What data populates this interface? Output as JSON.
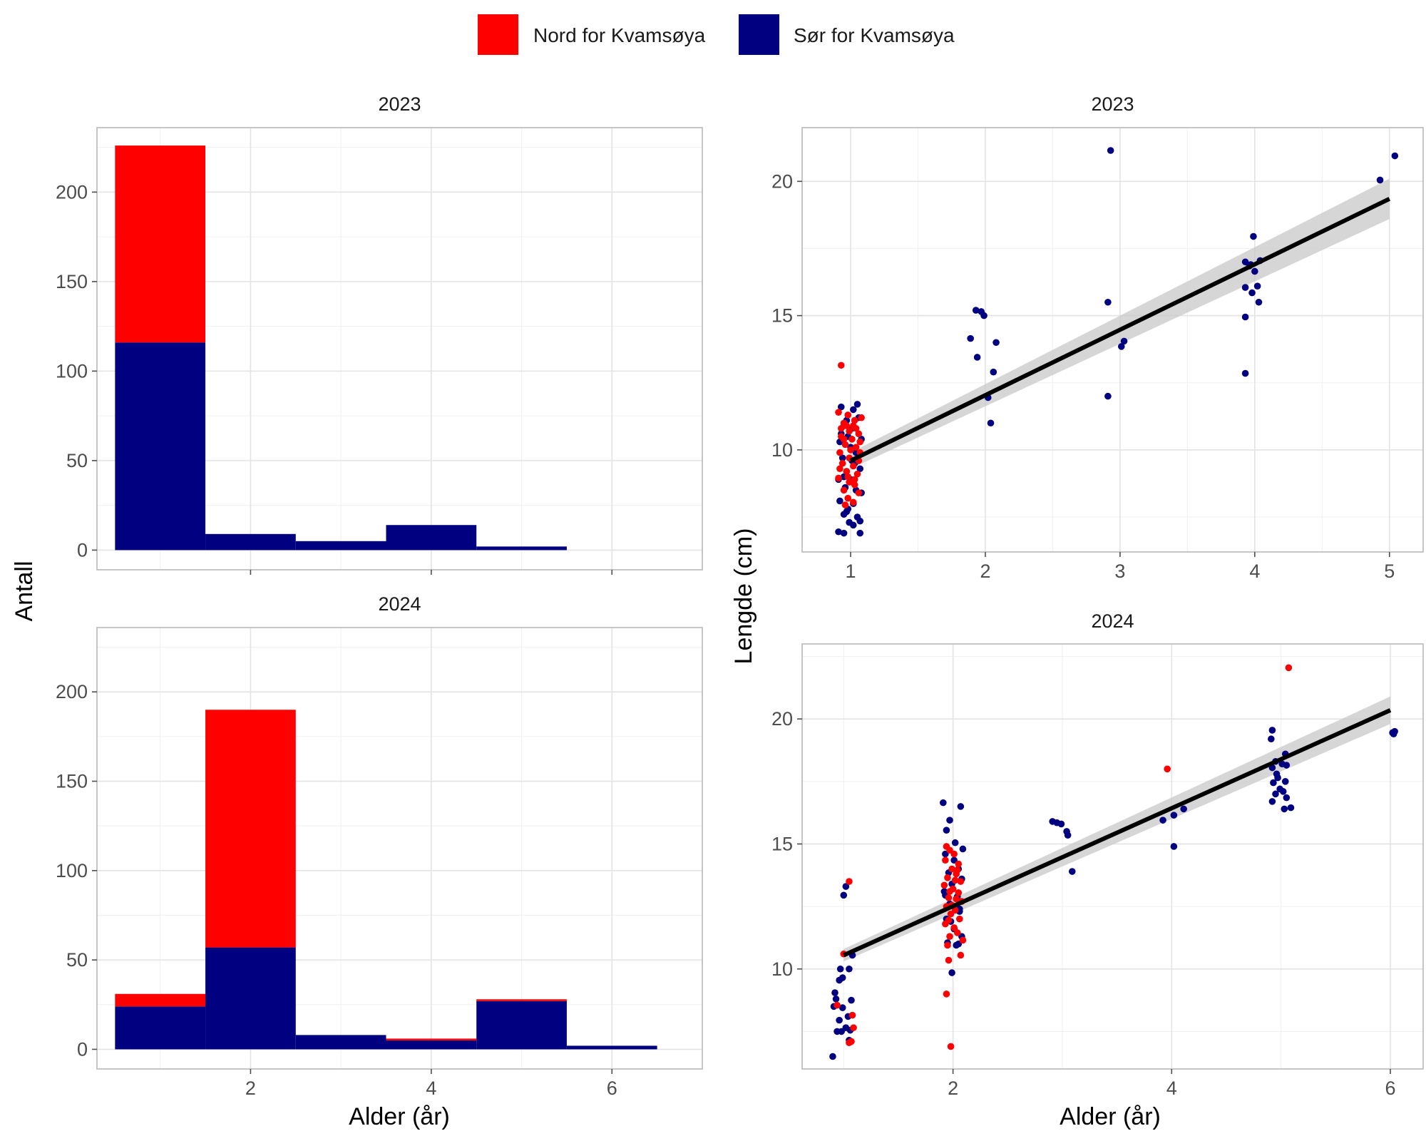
{
  "colors": {
    "nord": "#ff0000",
    "sor": "#000080",
    "fit_line": "#000000",
    "ribbon": "#c8c8c8"
  },
  "legend": {
    "items": [
      {
        "label": "Nord for Kvamsøya",
        "color": "#ff0000"
      },
      {
        "label": "Sør for Kvamsøya",
        "color": "#000080"
      }
    ]
  },
  "axes": {
    "hist_ylabel": "Antall",
    "hist_xlabel": "Alder (år)",
    "scatter_ylabel": "Lengde (cm)",
    "scatter_xlabel": "Alder (år)"
  },
  "chart_data": [
    {
      "type": "bar",
      "panel": "histogram",
      "title": "2023",
      "stacked": true,
      "categories": [
        1,
        2,
        3,
        4,
        5
      ],
      "series": [
        {
          "name": "Sør for Kvamsøya",
          "values": [
            116,
            9,
            5,
            14,
            2
          ]
        },
        {
          "name": "Nord for Kvamsøya",
          "values": [
            110,
            0,
            0,
            0,
            0
          ]
        }
      ],
      "xlim": [
        0.3,
        7.0
      ],
      "ylim": [
        -11,
        236
      ],
      "xticks": [],
      "yticks": [
        0,
        50,
        100,
        150,
        200
      ],
      "grid": true
    },
    {
      "type": "bar",
      "panel": "histogram",
      "title": "2024",
      "stacked": true,
      "categories": [
        1,
        2,
        3,
        4,
        5,
        6
      ],
      "series": [
        {
          "name": "Sør for Kvamsøya",
          "values": [
            24,
            57,
            8,
            5,
            27,
            2
          ]
        },
        {
          "name": "Nord for Kvamsøya",
          "values": [
            7,
            133,
            0,
            1,
            1,
            0
          ]
        }
      ],
      "xlim": [
        0.3,
        7.0
      ],
      "ylim": [
        -11,
        236
      ],
      "xticks": [
        2,
        4,
        6
      ],
      "yticks": [
        0,
        50,
        100,
        150,
        200
      ],
      "grid": true
    },
    {
      "type": "scatter",
      "panel": "scatter",
      "title": "2023",
      "xlim": [
        0.64,
        5.25
      ],
      "ylim": [
        6.2,
        22.0
      ],
      "xticks": [
        1,
        2,
        3,
        4,
        5
      ],
      "yticks": [
        10,
        15,
        20
      ],
      "grid": true,
      "series": [
        {
          "name": "Sør for Kvamsøya",
          "points": [
            [
              1.93,
              15.2
            ],
            [
              1.97,
              15.15
            ],
            [
              1.99,
              15.0
            ],
            [
              1.89,
              14.15
            ],
            [
              2.08,
              14.0
            ],
            [
              1.94,
              13.45
            ],
            [
              2.06,
              12.9
            ],
            [
              2.02,
              11.95
            ],
            [
              2.04,
              11.0
            ],
            [
              2.93,
              21.15
            ],
            [
              2.91,
              15.5
            ],
            [
              3.03,
              14.05
            ],
            [
              3.01,
              13.85
            ],
            [
              2.91,
              12.0
            ],
            [
              3.99,
              17.95
            ],
            [
              3.93,
              17.0
            ],
            [
              3.96,
              16.85
            ],
            [
              4.04,
              17.05
            ],
            [
              4.0,
              16.65
            ],
            [
              3.97,
              16.9
            ],
            [
              3.93,
              16.05
            ],
            [
              3.98,
              15.85
            ],
            [
              4.02,
              16.1
            ],
            [
              4.03,
              15.5
            ],
            [
              3.93,
              14.95
            ],
            [
              3.93,
              12.85
            ],
            [
              4.93,
              20.05
            ],
            [
              5.04,
              20.95
            ],
            [
              0.93,
              11.6
            ],
            [
              1.02,
              11.5
            ],
            [
              1.05,
              11.7
            ],
            [
              0.97,
              11.1
            ],
            [
              1.06,
              11.2
            ],
            [
              0.95,
              10.9
            ],
            [
              1.01,
              10.8
            ],
            [
              0.92,
              10.3
            ],
            [
              1.08,
              10.4
            ],
            [
              1.0,
              10.1
            ],
            [
              0.94,
              9.7
            ],
            [
              1.03,
              9.5
            ],
            [
              0.97,
              9.2
            ],
            [
              1.07,
              9.3
            ],
            [
              0.91,
              8.9
            ],
            [
              1.0,
              8.9
            ],
            [
              0.96,
              8.6
            ],
            [
              1.04,
              8.5
            ],
            [
              0.92,
              8.1
            ],
            [
              1.02,
              8.0
            ],
            [
              0.98,
              7.8
            ],
            [
              0.95,
              7.6
            ],
            [
              1.05,
              7.5
            ],
            [
              0.99,
              7.3
            ],
            [
              1.02,
              7.2
            ],
            [
              1.07,
              7.35
            ],
            [
              0.91,
              6.95
            ],
            [
              0.95,
              6.9
            ],
            [
              1.07,
              6.9
            ],
            [
              0.97,
              7.7
            ],
            [
              1.08,
              8.4
            ],
            [
              0.93,
              10.6
            ],
            [
              1.04,
              9.9
            ],
            [
              0.98,
              10.5
            ],
            [
              1.01,
              9.6
            ],
            [
              0.95,
              9.0
            ]
          ]
        },
        {
          "name": "Nord for Kvamsøya",
          "points": [
            [
              0.93,
              13.15
            ],
            [
              0.91,
              11.4
            ],
            [
              0.98,
              11.3
            ],
            [
              1.03,
              11.1
            ],
            [
              1.08,
              11.2
            ],
            [
              0.95,
              11.0
            ],
            [
              1.02,
              10.9
            ],
            [
              0.99,
              10.7
            ],
            [
              1.06,
              10.6
            ],
            [
              0.93,
              10.5
            ],
            [
              1.01,
              10.4
            ],
            [
              0.96,
              10.2
            ],
            [
              1.04,
              10.1
            ],
            [
              0.92,
              9.9
            ],
            [
              1.07,
              9.9
            ],
            [
              0.99,
              9.7
            ],
            [
              0.94,
              9.5
            ],
            [
              1.02,
              9.4
            ],
            [
              0.97,
              9.2
            ],
            [
              1.05,
              9.1
            ],
            [
              0.91,
              8.95
            ],
            [
              0.99,
              8.8
            ],
            [
              1.03,
              8.7
            ],
            [
              0.95,
              8.5
            ],
            [
              1.06,
              8.4
            ],
            [
              0.98,
              8.2
            ],
            [
              1.02,
              8.05
            ],
            [
              0.96,
              7.95
            ],
            [
              1.04,
              10.8
            ],
            [
              0.93,
              10.8
            ],
            [
              1.07,
              10.3
            ],
            [
              0.97,
              10.9
            ],
            [
              1.0,
              10.0
            ],
            [
              0.92,
              9.3
            ],
            [
              1.06,
              9.6
            ],
            [
              0.98,
              9.0
            ],
            [
              1.03,
              8.9
            ],
            [
              0.95,
              10.4
            ]
          ]
        }
      ],
      "fit": {
        "x": [
          1.0,
          5.0
        ],
        "y": [
          9.6,
          19.35
        ],
        "ribbon_low": [
          9.3,
          18.6
        ],
        "ribbon_high": [
          9.9,
          20.1
        ]
      }
    },
    {
      "type": "scatter",
      "panel": "scatter",
      "title": "2024",
      "xlim": [
        0.62,
        6.3
      ],
      "ylim": [
        6.0,
        23.0
      ],
      "xticks": [
        2,
        4,
        6
      ],
      "yticks": [
        10,
        15,
        20
      ],
      "grid": true,
      "series": [
        {
          "name": "Sør for Kvamsøya",
          "points": [
            [
              1.0,
              12.95
            ],
            [
              1.08,
              10.55
            ],
            [
              0.97,
              10.0
            ],
            [
              1.05,
              10.0
            ],
            [
              0.99,
              9.65
            ],
            [
              0.96,
              9.55
            ],
            [
              0.92,
              9.05
            ],
            [
              0.93,
              8.8
            ],
            [
              1.07,
              8.75
            ],
            [
              0.91,
              8.5
            ],
            [
              0.99,
              8.45
            ],
            [
              1.04,
              8.1
            ],
            [
              0.96,
              7.95
            ],
            [
              1.02,
              7.65
            ],
            [
              0.98,
              7.5
            ],
            [
              1.06,
              7.55
            ],
            [
              0.94,
              7.5
            ],
            [
              1.05,
              7.15
            ],
            [
              0.9,
              6.5
            ],
            [
              1.02,
              13.3
            ],
            [
              1.91,
              16.65
            ],
            [
              2.07,
              16.5
            ],
            [
              1.97,
              15.95
            ],
            [
              1.94,
              15.55
            ],
            [
              2.02,
              15.05
            ],
            [
              2.09,
              14.8
            ],
            [
              1.93,
              14.6
            ],
            [
              2.01,
              14.35
            ],
            [
              2.05,
              14.0
            ],
            [
              1.96,
              13.85
            ],
            [
              2.08,
              13.6
            ],
            [
              1.99,
              13.4
            ],
            [
              1.92,
              13.1
            ],
            [
              2.04,
              12.9
            ],
            [
              1.97,
              12.6
            ],
            [
              2.06,
              12.3
            ],
            [
              1.94,
              12.0
            ],
            [
              2.01,
              11.6
            ],
            [
              2.08,
              11.3
            ],
            [
              1.95,
              11.05
            ],
            [
              2.03,
              10.95
            ],
            [
              2.05,
              11.0
            ],
            [
              1.99,
              9.85
            ],
            [
              1.93,
              12.95
            ],
            [
              2.06,
              12.4
            ],
            [
              1.98,
              11.9
            ],
            [
              2.91,
              15.9
            ],
            [
              2.95,
              15.85
            ],
            [
              2.99,
              15.8
            ],
            [
              3.04,
              15.5
            ],
            [
              3.05,
              15.35
            ],
            [
              3.09,
              13.9
            ],
            [
              3.92,
              15.95
            ],
            [
              4.02,
              16.15
            ],
            [
              4.11,
              16.4
            ],
            [
              4.02,
              14.9
            ],
            [
              4.92,
              19.55
            ],
            [
              4.91,
              19.2
            ],
            [
              5.04,
              18.6
            ],
            [
              4.95,
              18.3
            ],
            [
              4.92,
              18.05
            ],
            [
              5.01,
              18.2
            ],
            [
              5.05,
              18.15
            ],
            [
              4.96,
              17.8
            ],
            [
              5.04,
              17.5
            ],
            [
              4.93,
              17.45
            ],
            [
              4.99,
              17.2
            ],
            [
              5.02,
              17.1
            ],
            [
              4.95,
              17.0
            ],
            [
              5.05,
              16.85
            ],
            [
              4.92,
              16.7
            ],
            [
              5.03,
              16.4
            ],
            [
              5.09,
              16.45
            ],
            [
              4.97,
              17.65
            ],
            [
              6.02,
              19.45
            ],
            [
              6.04,
              19.5
            ],
            [
              6.03,
              19.4
            ]
          ]
        },
        {
          "name": "Nord for Kvamsøya",
          "points": [
            [
              1.05,
              13.5
            ],
            [
              1.0,
              10.6
            ],
            [
              0.94,
              8.55
            ],
            [
              1.08,
              8.15
            ],
            [
              1.09,
              7.65
            ],
            [
              1.07,
              7.1
            ],
            [
              1.05,
              7.05
            ],
            [
              1.94,
              14.9
            ],
            [
              1.97,
              14.75
            ],
            [
              2.01,
              14.6
            ],
            [
              1.93,
              14.35
            ],
            [
              2.05,
              14.2
            ],
            [
              1.99,
              14.0
            ],
            [
              2.03,
              13.8
            ],
            [
              1.95,
              13.65
            ],
            [
              2.07,
              13.5
            ],
            [
              1.92,
              13.35
            ],
            [
              2.0,
              13.2
            ],
            [
              2.05,
              13.05
            ],
            [
              1.96,
              12.85
            ],
            [
              2.08,
              12.7
            ],
            [
              1.94,
              12.5
            ],
            [
              2.02,
              12.35
            ],
            [
              1.98,
              12.2
            ],
            [
              2.06,
              12.0
            ],
            [
              1.93,
              11.8
            ],
            [
              2.01,
              11.65
            ],
            [
              2.04,
              11.45
            ],
            [
              1.97,
              11.3
            ],
            [
              2.09,
              11.15
            ],
            [
              1.95,
              10.95
            ],
            [
              2.07,
              10.55
            ],
            [
              1.96,
              10.35
            ],
            [
              1.94,
              9.0
            ],
            [
              1.98,
              6.9
            ],
            [
              1.97,
              13.1
            ],
            [
              2.03,
              12.8
            ],
            [
              1.99,
              12.55
            ],
            [
              2.02,
              13.55
            ],
            [
              1.96,
              11.95
            ],
            [
              2.04,
              13.95
            ],
            [
              3.96,
              18.0
            ],
            [
              5.07,
              22.05
            ]
          ]
        }
      ],
      "fit": {
        "x": [
          1.0,
          6.0
        ],
        "y": [
          10.55,
          20.35
        ],
        "ribbon_low": [
          10.3,
          19.8
        ],
        "ribbon_high": [
          10.8,
          20.9
        ]
      }
    }
  ]
}
